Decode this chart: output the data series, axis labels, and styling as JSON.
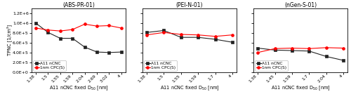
{
  "panels": [
    {
      "title": "(ABS-PR-01)",
      "x_labels": [
        "1.38",
        "1.5",
        "1.55",
        "1.59",
        "2.04",
        "2.69",
        "3.02",
        "4"
      ],
      "x_values": [
        1.38,
        1.5,
        1.55,
        1.59,
        2.04,
        2.69,
        3.02,
        4.0
      ],
      "y_ncnc": [
        1000000.0,
        810000.0,
        690000.0,
        690000.0,
        510000.0,
        410000.0,
        400000.0,
        410000.0
      ],
      "y_cpc": [
        900000.0,
        860000.0,
        840000.0,
        870000.0,
        980000.0,
        940000.0,
        950000.0,
        900000.0
      ],
      "ylim": [
        0,
        1300000.0
      ],
      "yticks": [
        0,
        200000.0,
        400000.0,
        600000.0,
        800000.0,
        1000000.0,
        1200000.0
      ],
      "xlabel": "A11 nCNC fixed D$_{50}$ [nm]",
      "ylabel": "TPNC [1/cm³]",
      "show_ylabel": true
    },
    {
      "title": "(PEI-N-01)",
      "x_labels": [
        "1.38",
        "1.5",
        "1.55",
        "1.59",
        "1.7",
        "4"
      ],
      "x_values": [
        1.38,
        1.5,
        1.55,
        1.59,
        1.7,
        4.0
      ],
      "y_ncnc": [
        810000.0,
        850000.0,
        710000.0,
        710000.0,
        670000.0,
        610000.0
      ],
      "y_cpc": [
        760000.0,
        810000.0,
        770000.0,
        760000.0,
        730000.0,
        760000.0
      ],
      "ylim": [
        0,
        1300000.0
      ],
      "yticks": [
        0,
        200000.0,
        400000.0,
        600000.0,
        800000.0,
        1000000.0,
        1200000.0
      ],
      "xlabel": "A11 nCNC fixed D$_{50}$ [nm]",
      "ylabel": "",
      "show_ylabel": false
    },
    {
      "title": "(nGen-S-01)",
      "x_labels": [
        "1.38",
        "1.45",
        "1.59",
        "1.7",
        "2.04",
        "4"
      ],
      "x_values": [
        1.38,
        1.45,
        1.59,
        1.7,
        2.04,
        4.0
      ],
      "y_ncnc": [
        490000.0,
        450000.0,
        440000.0,
        430000.0,
        320000.0,
        240000.0
      ],
      "y_cpc": [
        400000.0,
        480000.0,
        490000.0,
        480000.0,
        500000.0,
        490000.0
      ],
      "ylim": [
        0,
        1300000.0
      ],
      "yticks": [
        0,
        200000.0,
        400000.0,
        600000.0,
        800000.0,
        1000000.0,
        1200000.0
      ],
      "xlabel": "A11 nCNC fixed D$_{50}$ [nm]",
      "ylabel": "",
      "show_ylabel": false
    }
  ],
  "color_ncnc": "#222222",
  "color_cpc": "#FF0000",
  "legend_ncnc": "A11 nCNC",
  "legend_cpc": "1nm CPC(S)",
  "marker_ncnc": "s",
  "marker_cpc": "o",
  "linewidth": 0.8,
  "markersize": 2.8,
  "fontsize_title": 5.5,
  "fontsize_tick": 4.5,
  "fontsize_label": 4.8,
  "fontsize_legend": 4.2
}
